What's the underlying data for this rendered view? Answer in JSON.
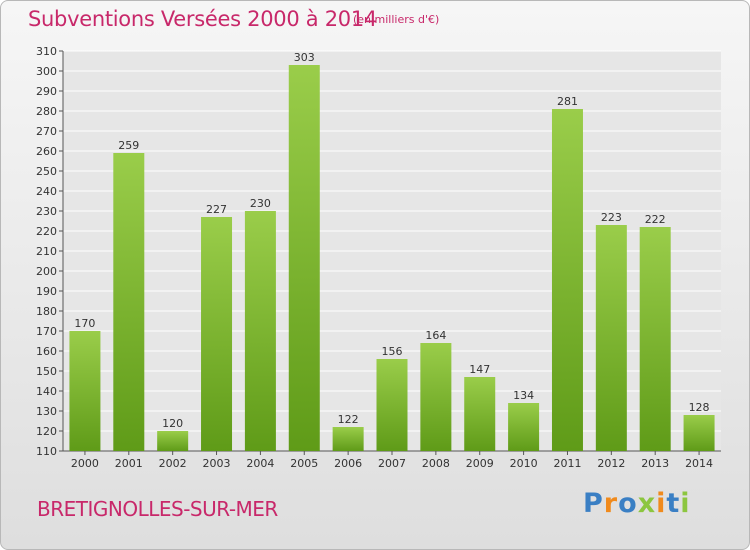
{
  "header": {
    "title": "Subventions Versées 2000 à 2014",
    "subtitle": "(en milliers d'€)"
  },
  "footer": {
    "city": "BRETIGNOLLES-SUR-MER",
    "logo_letters": [
      "P",
      "r",
      "o",
      "x",
      "i",
      "t",
      "i"
    ]
  },
  "colors": {
    "title": "#c8286a",
    "bar_top": "#9acd4a",
    "bar_bottom": "#5f9b18",
    "logo": [
      "#3a7fc4",
      "#f08a1c",
      "#3a7fc4",
      "#8cc63f",
      "#f08a1c",
      "#3a7fc4",
      "#8cc63f"
    ]
  },
  "chart_data": {
    "type": "bar",
    "title": "Subventions Versées 2000 à 2014",
    "categories": [
      "2000",
      "2001",
      "2002",
      "2003",
      "2004",
      "2005",
      "2006",
      "2007",
      "2008",
      "2009",
      "2010",
      "2011",
      "2012",
      "2013",
      "2014"
    ],
    "values": [
      170,
      259,
      120,
      227,
      230,
      303,
      122,
      156,
      164,
      147,
      134,
      281,
      223,
      222,
      128
    ],
    "ylim": [
      110,
      310
    ],
    "ytick_step": 10,
    "grid": true,
    "legend": "none"
  }
}
